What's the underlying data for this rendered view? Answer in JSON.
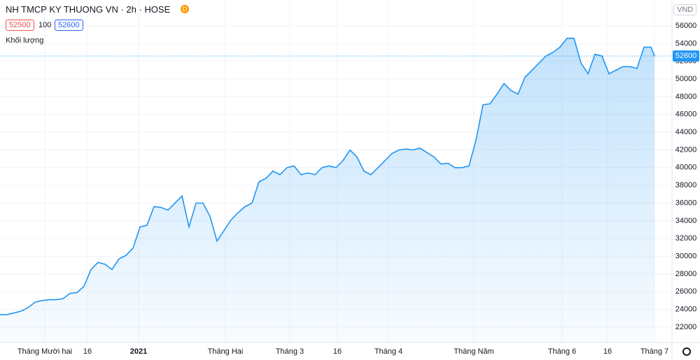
{
  "header": {
    "title": "NH TMCP KY THUONG VN · 2h · HOSE",
    "badge": "D",
    "bid": "52500",
    "spread": "100",
    "ask": "52600",
    "volume_label": "Khối lượng",
    "currency": "VND"
  },
  "chart_data": {
    "type": "area",
    "x": [
      0,
      1,
      2,
      3,
      4,
      5,
      6,
      7,
      8,
      9,
      10,
      11,
      12,
      13,
      14,
      15,
      16,
      17,
      18,
      19,
      20,
      21,
      22,
      23,
      24,
      25,
      26,
      27,
      28,
      29,
      30,
      31,
      32,
      33,
      34,
      35,
      36,
      37,
      38,
      39,
      40,
      41,
      42,
      43,
      44,
      45,
      46,
      47,
      48,
      49,
      50,
      51,
      52,
      53,
      54,
      55,
      56,
      57,
      58,
      59,
      60,
      61,
      62,
      63,
      64,
      65,
      66,
      67,
      68,
      69,
      70,
      71,
      72,
      73,
      74,
      75,
      76,
      77,
      78,
      79,
      80,
      81,
      82,
      83,
      84,
      85,
      86,
      87,
      88,
      89,
      90,
      91,
      92,
      93,
      93.5
    ],
    "series": [
      {
        "name": "NH TMCP KY THUONG VN",
        "color": "#2196f3",
        "values": [
          23400,
          23400,
          23600,
          23800,
          24200,
          24800,
          25000,
          25100,
          25100,
          25200,
          25800,
          25900,
          26600,
          28500,
          29300,
          29100,
          28500,
          29700,
          30100,
          30900,
          33300,
          33500,
          35600,
          35500,
          35200,
          36000,
          36800,
          33300,
          36000,
          36000,
          34500,
          31700,
          32900,
          34100,
          34900,
          35600,
          36000,
          38400,
          38800,
          39600,
          39200,
          40000,
          40200,
          39200,
          39400,
          39200,
          40000,
          40200,
          40000,
          40800,
          42000,
          41200,
          39600,
          39200,
          40000,
          40800,
          41600,
          42000,
          42100,
          42000,
          42200,
          41700,
          41200,
          40400,
          40500,
          40000,
          40000,
          40200,
          43100,
          47100,
          47200,
          48300,
          49500,
          48700,
          48300,
          50200,
          51000,
          51800,
          52600,
          53000,
          53600,
          54600,
          54600,
          51800,
          50600,
          52800,
          52600,
          50600,
          51000,
          51400,
          51400,
          51200,
          53600,
          53600,
          52600
        ]
      }
    ],
    "xlim": [
      0,
      96
    ],
    "ylim": [
      20260,
      58920
    ],
    "yticks": [
      22000,
      24000,
      26000,
      28000,
      30000,
      32000,
      34000,
      36000,
      38000,
      40000,
      42000,
      44000,
      46000,
      48000,
      50000,
      52000,
      54000,
      56000
    ],
    "xticks": [
      {
        "value": 6.4,
        "label": "Tháng Mười hai"
      },
      {
        "value": 12.5,
        "label": "16"
      },
      {
        "value": 19.8,
        "label": "2021"
      },
      {
        "value": 32.2,
        "label": "Tháng Hai"
      },
      {
        "value": 41.4,
        "label": "Tháng 3"
      },
      {
        "value": 48.2,
        "label": "16"
      },
      {
        "value": 55.5,
        "label": "Tháng 4"
      },
      {
        "value": 67.7,
        "label": "Tháng Năm"
      },
      {
        "value": 80.3,
        "label": "Tháng 6"
      },
      {
        "value": 86.8,
        "label": "16"
      },
      {
        "value": 93.5,
        "label": "Tháng 7"
      }
    ],
    "grid": true
  }
}
